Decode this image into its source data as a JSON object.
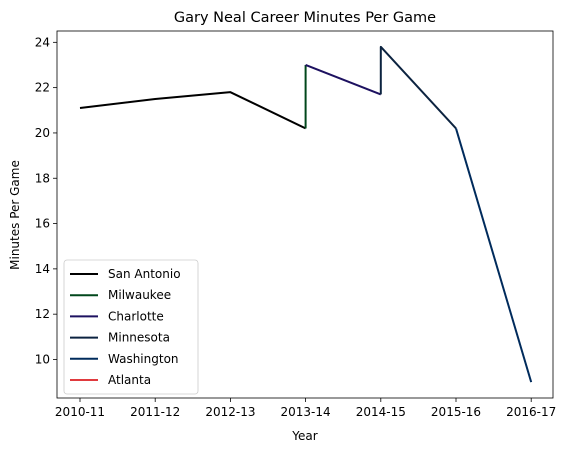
{
  "chart_data": {
    "type": "line",
    "title": "Gary Neal Career Minutes Per Game",
    "xlabel": "Year",
    "ylabel": "Minutes Per Game",
    "categories": [
      "2010-11",
      "2011-12",
      "2012-13",
      "2013-14",
      "2014-15",
      "2015-16",
      "2016-17"
    ],
    "yticks": [
      10,
      12,
      14,
      16,
      18,
      20,
      22,
      24
    ],
    "ylim": [
      8.3,
      24.5
    ],
    "grid": false,
    "legend_position": "lower-left",
    "series": [
      {
        "name": "San Antonio",
        "color": "#000000",
        "points": [
          [
            "2010-11",
            21.1
          ],
          [
            "2011-12",
            21.5
          ],
          [
            "2012-13",
            21.8
          ],
          [
            "2013-14",
            20.2
          ]
        ]
      },
      {
        "name": "Milwaukee",
        "color": "#00471b",
        "points": [
          [
            "2013-14",
            20.2
          ],
          [
            "2013-14",
            23.0
          ]
        ]
      },
      {
        "name": "Charlotte",
        "color": "#1d1160",
        "points": [
          [
            "2013-14",
            23.0
          ],
          [
            "2014-15",
            21.7
          ]
        ]
      },
      {
        "name": "Minnesota",
        "color": "#0c2340",
        "points": [
          [
            "2014-15",
            21.7
          ],
          [
            "2014-15",
            23.8
          ],
          [
            "2015-16",
            20.2
          ]
        ]
      },
      {
        "name": "Washington",
        "color": "#002b5c",
        "points": [
          [
            "2015-16",
            20.2
          ],
          [
            "2016-17",
            9.0
          ]
        ]
      },
      {
        "name": "Atlanta",
        "color": "#e03a3e",
        "points": [
          [
            "2016-17",
            9.0
          ],
          [
            "2016-17",
            9.0
          ]
        ]
      }
    ]
  }
}
